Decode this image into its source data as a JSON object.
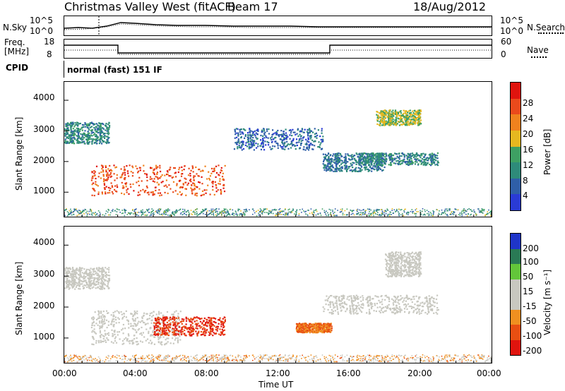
{
  "header": {
    "station": "Christmas Valley West (fitACF)",
    "beam": "Beam 17",
    "date": "18/Aug/2012"
  },
  "sky_panel": {
    "left_label": "N.Sky",
    "left_ticks": [
      "10^5",
      "10^0"
    ],
    "right_label": "N.Search",
    "right_ticks": [
      "10^5",
      "10^0"
    ]
  },
  "freq_panel": {
    "left_label_1": "Freq.",
    "left_label_2": "[MHz]",
    "left_ticks": [
      "18",
      "8"
    ],
    "right_label": "Nave",
    "right_ticks": [
      "60",
      "0"
    ]
  },
  "cpid": {
    "label": "CPID",
    "mode": "normal (fast) 151 IF"
  },
  "colors": {
    "power": [
      "#2a3bd6",
      "#2f5fa8",
      "#2e8b7a",
      "#3ea063",
      "#e6b820",
      "#f0821e",
      "#ea4a1c",
      "#e0140e"
    ],
    "velocity": [
      "#1f35c9",
      "#2a7a55",
      "#63c63a",
      "#c8c8c0",
      "#c8c8c0",
      "#f09020",
      "#e84f12",
      "#e0140e"
    ]
  },
  "chart_data": [
    {
      "type": "heatmap",
      "name_key": "power",
      "ylabel": "Slant Range [km]",
      "yticks": [
        "1000",
        "2000",
        "3000",
        "4000"
      ],
      "ylim": [
        200,
        4600
      ],
      "colorbar_label": "Power [dB]",
      "colorbar_ticks": [
        "4",
        "8",
        "12",
        "16",
        "20",
        "24",
        "28"
      ],
      "echo_regions_dB": [
        {
          "time": [
            "01:30",
            "09:00"
          ],
          "range_km": [
            900,
            1900
          ],
          "value": 26
        },
        {
          "time": [
            "00:00",
            "02:30"
          ],
          "range_km": [
            2600,
            3300
          ],
          "value": 10
        },
        {
          "time": [
            "09:30",
            "14:30"
          ],
          "range_km": [
            2400,
            3100
          ],
          "value": 6
        },
        {
          "time": [
            "14:30",
            "18:00"
          ],
          "range_km": [
            1700,
            2300
          ],
          "value": 8
        },
        {
          "time": [
            "16:30",
            "21:00"
          ],
          "range_km": [
            1900,
            2300
          ],
          "value": 10
        },
        {
          "time": [
            "17:30",
            "20:00"
          ],
          "range_km": [
            3200,
            3700
          ],
          "value": 16
        }
      ]
    },
    {
      "type": "heatmap",
      "name_key": "velocity",
      "ylabel": "Slant Range [km]",
      "yticks": [
        "1000",
        "2000",
        "3000",
        "4000"
      ],
      "ylim": [
        200,
        4600
      ],
      "xlabel": "Time UT",
      "xticks": [
        "00:00",
        "04:00",
        "08:00",
        "12:00",
        "16:00",
        "20:00",
        "00:00"
      ],
      "colorbar_label": "Velocity [m s⁻¹]",
      "colorbar_ticks": [
        "200",
        "100",
        "50",
        "15",
        "-15",
        "-50",
        "-100",
        "-200"
      ],
      "echo_regions_mps": [
        {
          "time": [
            "01:30",
            "06:30"
          ],
          "range_km": [
            800,
            1900
          ],
          "value": 0
        },
        {
          "time": [
            "05:00",
            "09:00"
          ],
          "range_km": [
            1100,
            1700
          ],
          "value": -100
        },
        {
          "time": [
            "00:00",
            "02:30"
          ],
          "range_km": [
            2600,
            3300
          ],
          "value": 0
        },
        {
          "time": [
            "13:00",
            "15:00"
          ],
          "range_km": [
            1200,
            1500
          ],
          "value": -50
        },
        {
          "time": [
            "14:30",
            "21:00"
          ],
          "range_km": [
            1800,
            2400
          ],
          "value": 0
        },
        {
          "time": [
            "18:00",
            "20:00"
          ],
          "range_km": [
            3000,
            3800
          ],
          "value": 0
        }
      ]
    }
  ]
}
